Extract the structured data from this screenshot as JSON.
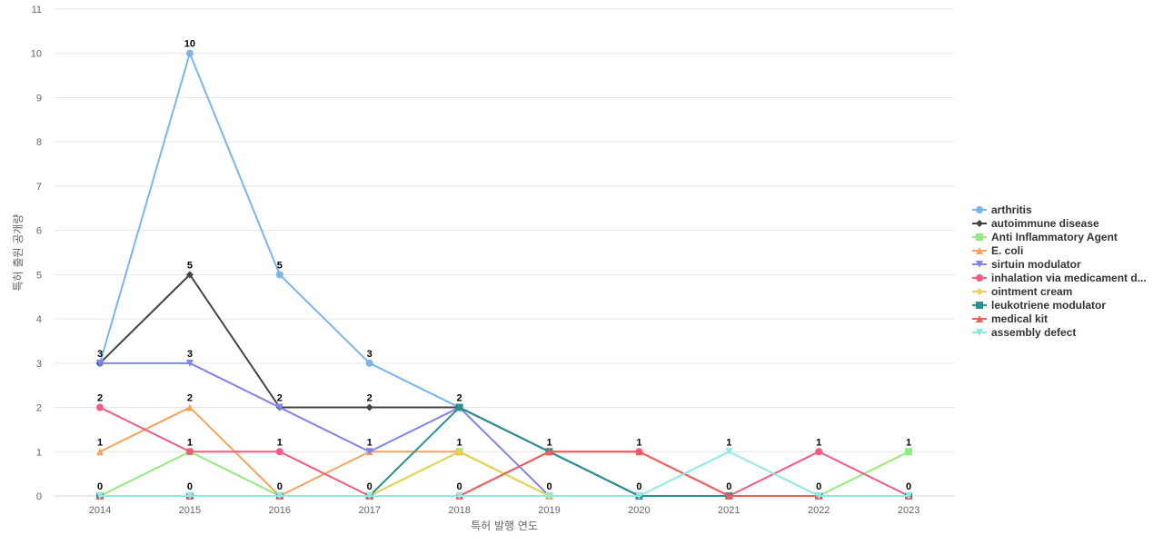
{
  "chart_data": {
    "type": "line",
    "title": "",
    "xlabel": "특허 발행 연도",
    "ylabel": "특허 출원 공개량",
    "x": [
      "2014",
      "2015",
      "2016",
      "2017",
      "2018",
      "2019",
      "2020",
      "2021",
      "2022",
      "2023"
    ],
    "ylim": [
      0,
      11
    ],
    "yticks": [
      0,
      1,
      2,
      3,
      4,
      5,
      6,
      7,
      8,
      9,
      10,
      11
    ],
    "grid": true,
    "legend_position": "right",
    "data_labels": true,
    "series": [
      {
        "name": "arthritis",
        "color": "#7cb5ec",
        "marker": "circle",
        "values": [
          3,
          10,
          5,
          3,
          2,
          1,
          0,
          0,
          0,
          0
        ]
      },
      {
        "name": "autoimmune disease",
        "color": "#434348",
        "marker": "diamond",
        "values": [
          3,
          5,
          2,
          2,
          2,
          1,
          0,
          0,
          0,
          0
        ]
      },
      {
        "name": "Anti Inflammatory Agent",
        "color": "#90ed7d",
        "marker": "square",
        "values": [
          0,
          1,
          0,
          0,
          1,
          0,
          0,
          0,
          0,
          1
        ]
      },
      {
        "name": "E. coli",
        "color": "#f7a35c",
        "marker": "triangle",
        "values": [
          1,
          2,
          0,
          1,
          1,
          0,
          0,
          0,
          0,
          0
        ]
      },
      {
        "name": "sirtuin modulator",
        "color": "#8085e9",
        "marker": "triangle-down",
        "values": [
          3,
          3,
          2,
          1,
          2,
          0,
          0,
          0,
          0,
          0
        ]
      },
      {
        "name": "inhalation via medicament d...",
        "color": "#f15c80",
        "marker": "circle",
        "values": [
          2,
          1,
          1,
          0,
          0,
          1,
          1,
          0,
          1,
          0
        ]
      },
      {
        "name": "ointment cream",
        "color": "#e4d354",
        "marker": "diamond",
        "values": [
          0,
          0,
          0,
          0,
          1,
          0,
          0,
          0,
          0,
          0
        ]
      },
      {
        "name": "leukotriene modulator",
        "color": "#2b908f",
        "marker": "square",
        "values": [
          0,
          0,
          0,
          0,
          2,
          1,
          0,
          0,
          0,
          0
        ]
      },
      {
        "name": "medical kit",
        "color": "#f45b5b",
        "marker": "triangle",
        "values": [
          0,
          0,
          0,
          0,
          0,
          1,
          1,
          0,
          0,
          0
        ]
      },
      {
        "name": "assembly defect",
        "color": "#91e8e1",
        "marker": "triangle-down",
        "values": [
          0,
          0,
          0,
          0,
          0,
          0,
          0,
          1,
          0,
          0
        ]
      }
    ],
    "point_labels": [
      {
        "x_index": 0,
        "y": 3,
        "text": "3"
      },
      {
        "x_index": 0,
        "y": 2,
        "text": "2"
      },
      {
        "x_index": 0,
        "y": 1,
        "text": "1"
      },
      {
        "x_index": 0,
        "y": 0,
        "text": "0"
      },
      {
        "x_index": 1,
        "y": 10,
        "text": "10"
      },
      {
        "x_index": 1,
        "y": 5,
        "text": "5"
      },
      {
        "x_index": 1,
        "y": 3,
        "text": "3"
      },
      {
        "x_index": 1,
        "y": 2,
        "text": "2"
      },
      {
        "x_index": 1,
        "y": 1,
        "text": "1"
      },
      {
        "x_index": 1,
        "y": 0,
        "text": "0"
      },
      {
        "x_index": 2,
        "y": 5,
        "text": "5"
      },
      {
        "x_index": 2,
        "y": 2,
        "text": "2"
      },
      {
        "x_index": 2,
        "y": 1,
        "text": "1"
      },
      {
        "x_index": 2,
        "y": 0,
        "text": "0"
      },
      {
        "x_index": 3,
        "y": 3,
        "text": "3"
      },
      {
        "x_index": 3,
        "y": 2,
        "text": "2"
      },
      {
        "x_index": 3,
        "y": 1,
        "text": "1"
      },
      {
        "x_index": 3,
        "y": 0,
        "text": "0"
      },
      {
        "x_index": 4,
        "y": 2,
        "text": "2"
      },
      {
        "x_index": 4,
        "y": 1,
        "text": "1"
      },
      {
        "x_index": 4,
        "y": 0,
        "text": "0"
      },
      {
        "x_index": 5,
        "y": 1,
        "text": "1"
      },
      {
        "x_index": 5,
        "y": 0,
        "text": "0"
      },
      {
        "x_index": 6,
        "y": 1,
        "text": "1"
      },
      {
        "x_index": 6,
        "y": 0,
        "text": "0"
      },
      {
        "x_index": 7,
        "y": 1,
        "text": "1"
      },
      {
        "x_index": 7,
        "y": 0,
        "text": "0"
      },
      {
        "x_index": 8,
        "y": 1,
        "text": "1"
      },
      {
        "x_index": 8,
        "y": 0,
        "text": "0"
      },
      {
        "x_index": 9,
        "y": 1,
        "text": "1"
      },
      {
        "x_index": 9,
        "y": 0,
        "text": "0"
      }
    ]
  }
}
